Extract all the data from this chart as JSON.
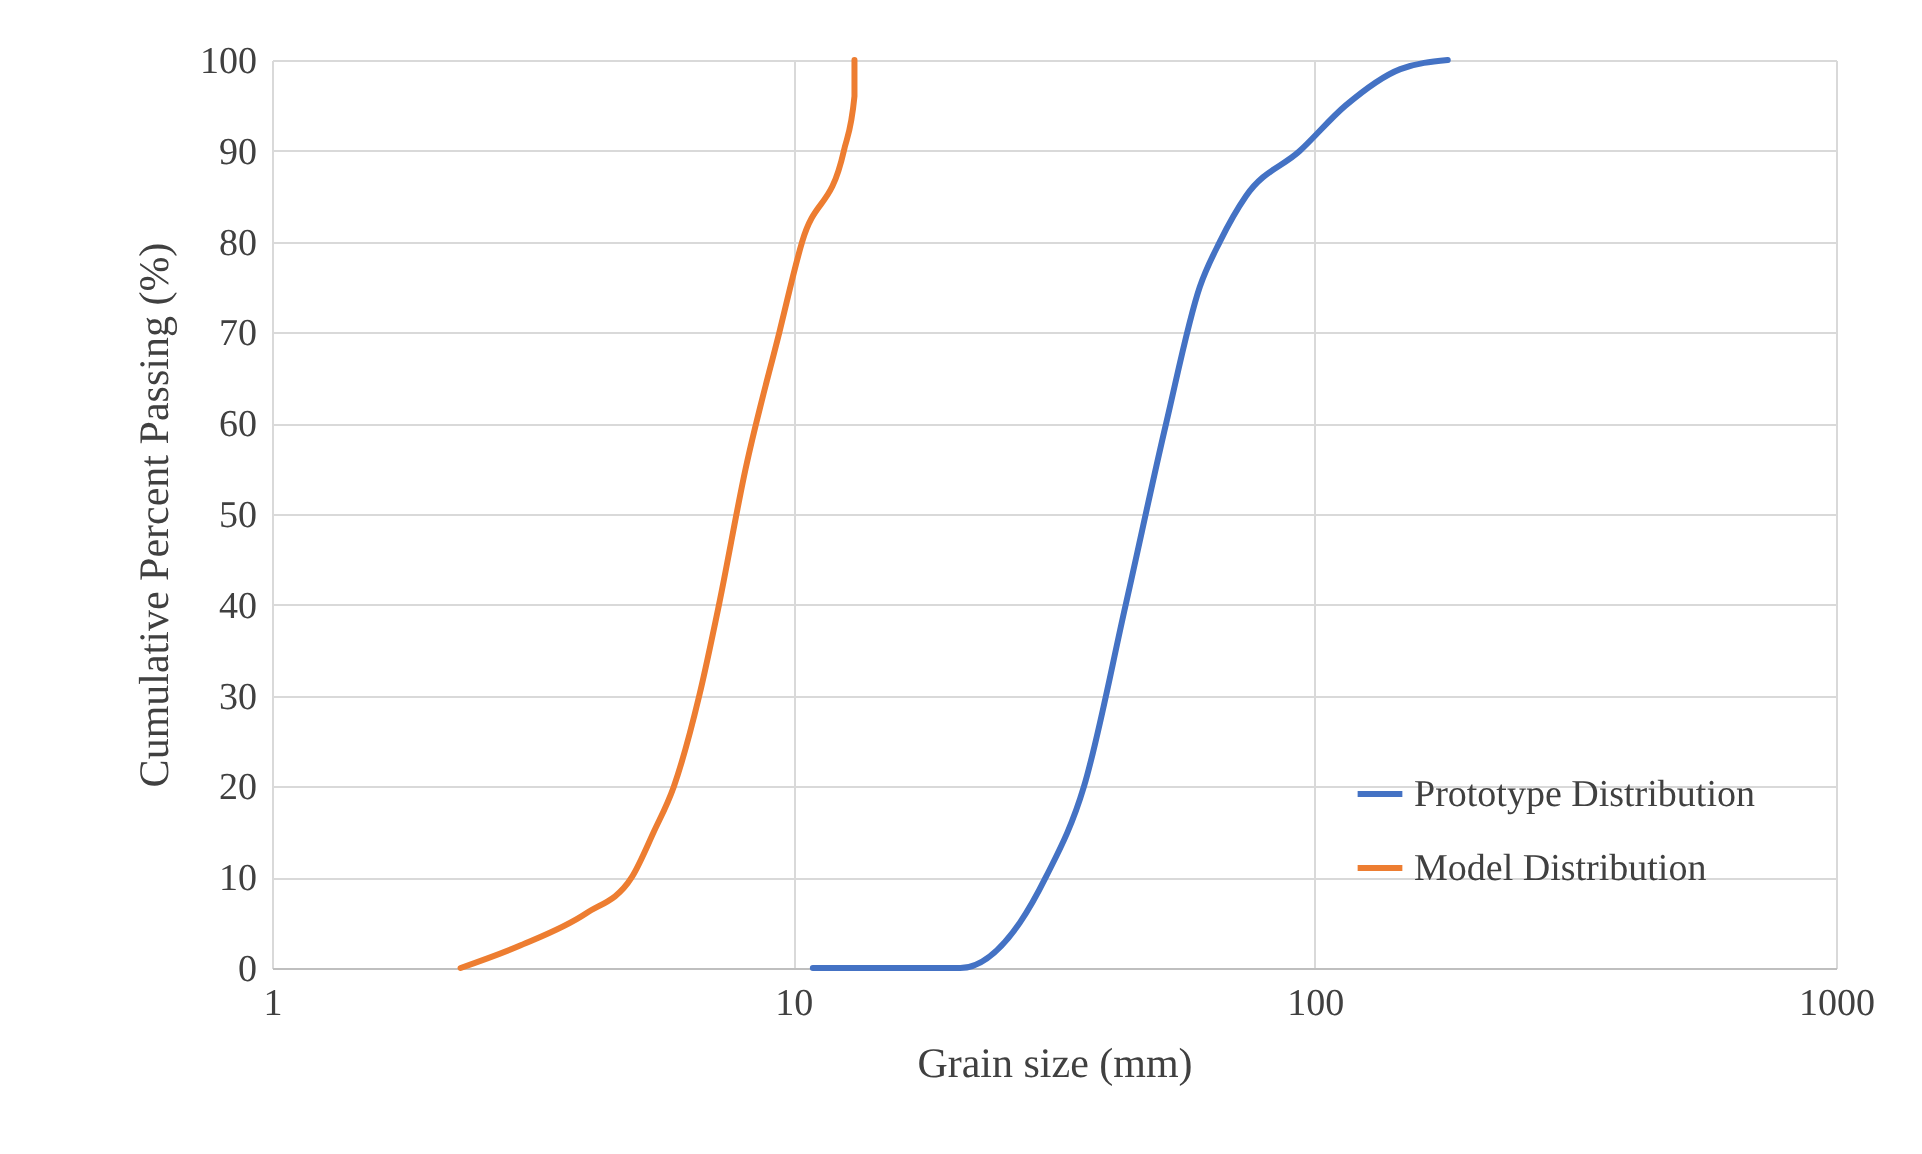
{
  "chart_data": {
    "type": "line",
    "xlabel": "Grain size (mm)",
    "ylabel": "Cumulative Percent Passing (%)",
    "log": "x",
    "xlim": [
      1,
      1000
    ],
    "xticks": [
      1,
      10,
      100,
      1000
    ],
    "ylim": [
      0,
      100
    ],
    "yticks": [
      0,
      10,
      20,
      30,
      40,
      50,
      60,
      70,
      80,
      90,
      100
    ],
    "grid": true,
    "legend": "bottom right",
    "line_style": "solid",
    "marker": "none",
    "series": [
      {
        "name": "Prototype Distribution",
        "color": "#4472c4",
        "x": [
          10.9,
          16.3,
          20.9,
          27.2,
          30.5,
          36.1,
          43.4,
          51.9,
          60.2,
          65.8,
          73.8,
          93.7,
          114.7,
          146,
          180
        ],
        "values": [
          0,
          0,
          0,
          5,
          10,
          20,
          40,
          60,
          75,
          80,
          85,
          90,
          95,
          99,
          100
        ]
      },
      {
        "name": "Model Distribution",
        "color": "#ed7d31",
        "x": [
          2.3,
          3,
          4,
          4.9,
          5.4,
          5.9,
          6.6,
          7.2,
          8.1,
          9.4,
          10.4,
          12.5,
          13.1,
          13.1
        ],
        "values": [
          0,
          2.5,
          6,
          10,
          15,
          20,
          30,
          40,
          55,
          70,
          80,
          90,
          96,
          100
        ]
      }
    ]
  }
}
